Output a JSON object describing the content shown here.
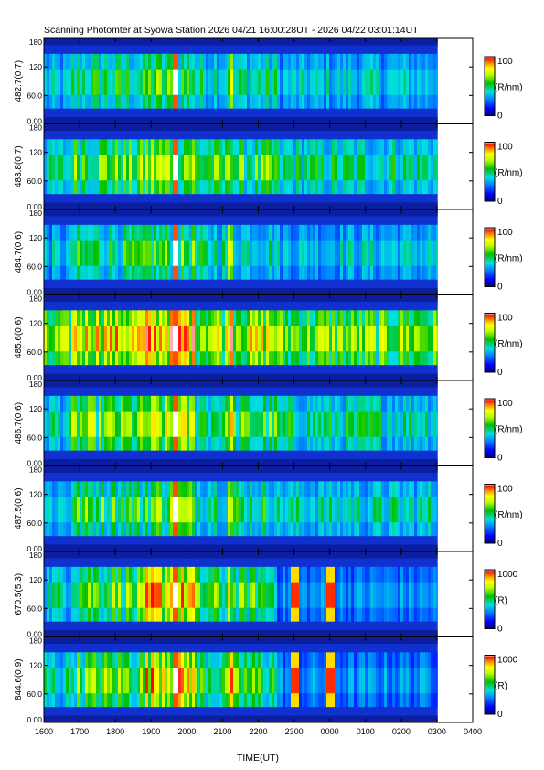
{
  "figure": {
    "title": "Scanning Photomter at Syowa Station  2026 04/21 16:00:28UT - 2026 04/22 03:01:14UT",
    "xlabel": "TIME(UT)"
  },
  "colors": {
    "colormap": [
      "#000080",
      "#0000ff",
      "#0080ff",
      "#00e0e0",
      "#00c000",
      "#c0ff00",
      "#ffff00",
      "#ff8000",
      "#ff0000",
      "#ffffff"
    ]
  },
  "chart_data": {
    "type": "heatmap",
    "title": "Scanning Photomter at Syowa Station  2026 04/21 16:00:28UT - 2026 04/22 03:01:14UT",
    "xlabel": "TIME(UT)",
    "x_ticks": [
      "1600",
      "1700",
      "1800",
      "1900",
      "2000",
      "2100",
      "2200",
      "2300",
      "0000",
      "0100",
      "0200",
      "0300",
      "0400"
    ],
    "xlim_hours": [
      16,
      28
    ],
    "data_end_hour": 27.02,
    "y_ticks": [
      "0.00",
      "60.0",
      "120",
      "180"
    ],
    "ylim": [
      0,
      180
    ],
    "panels": [
      {
        "label": "482.7(0.7)",
        "unit": "(R/nm)",
        "cmax": "100",
        "cmin": "0",
        "level": 0.45
      },
      {
        "label": "483.8(0.7)",
        "unit": "(R/nm)",
        "cmax": "100",
        "cmin": "0",
        "level": 0.55
      },
      {
        "label": "484.7(0.6)",
        "unit": "(R/nm)",
        "cmax": "100",
        "cmin": "0",
        "level": 0.45
      },
      {
        "label": "485.6(0.6)",
        "unit": "(R/nm)",
        "cmax": "100",
        "cmin": "0",
        "level": 0.75
      },
      {
        "label": "486.7(0.6)",
        "unit": "(R/nm)",
        "cmax": "100",
        "cmin": "0",
        "level": 0.55
      },
      {
        "label": "487.5(0.6)",
        "unit": "(R/nm)",
        "cmax": "100",
        "cmin": "0",
        "level": 0.5
      },
      {
        "label": "670.5(5.3)",
        "unit": "(R)",
        "cmax": "1000",
        "cmin": "0",
        "level": 0.55
      },
      {
        "label": "844.6(0.9)",
        "unit": "(R)",
        "cmax": "1000",
        "cmin": "0",
        "level": 0.55
      }
    ]
  }
}
